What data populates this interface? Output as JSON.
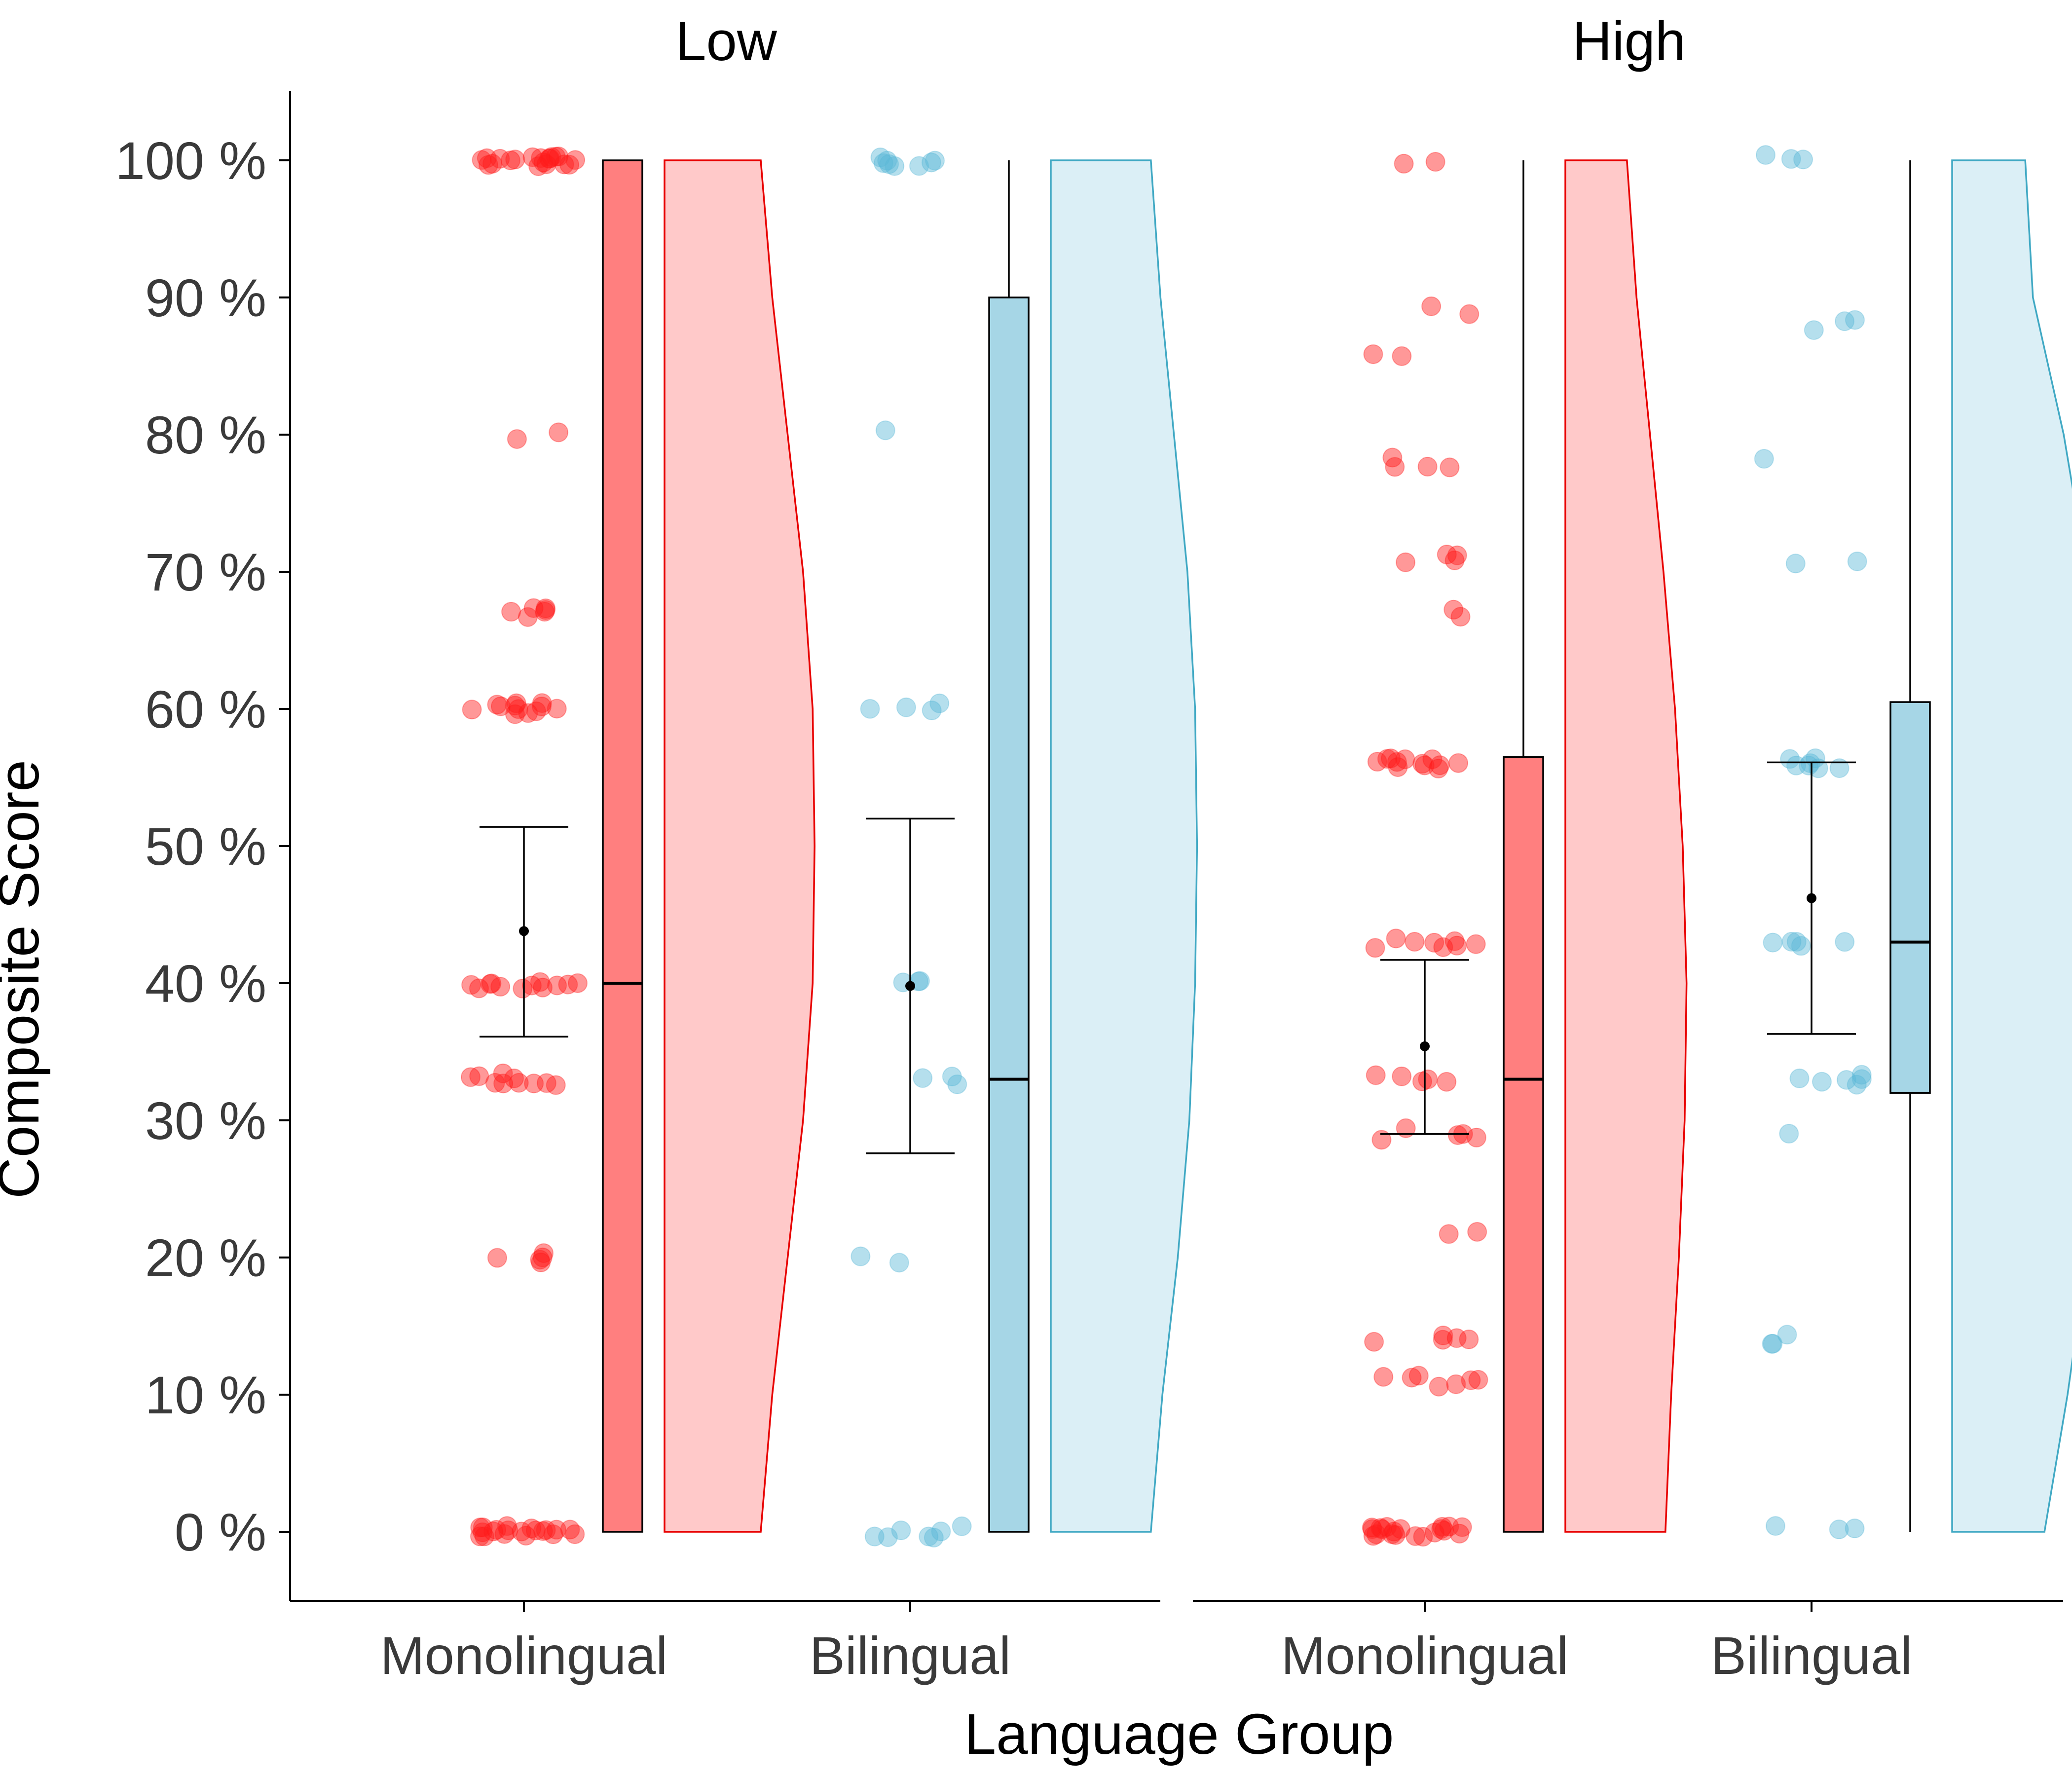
{
  "chart_data": {
    "type": "raincloud",
    "xlabel": "Language Group",
    "ylabel": "Composite Score",
    "ylim": [
      -5,
      105
    ],
    "yticks": [
      0,
      10,
      20,
      30,
      40,
      50,
      60,
      70,
      80,
      90,
      100
    ],
    "ytick_labels": [
      "0 %",
      "10 %",
      "20 %",
      "30 %",
      "40 %",
      "50 %",
      "60 %",
      "70 %",
      "80 %",
      "90 %",
      "100 %"
    ],
    "categories": [
      "Monolingual",
      "Bilingual"
    ],
    "grid": false,
    "colors": {
      "Monolingual": {
        "point": "#ff1a1a",
        "box": "#ff7f7f",
        "violin_fill": "#ffc9c9",
        "violin_line": "#e80000"
      },
      "Bilingual": {
        "point": "#5ab8d8",
        "box": "#a6d6e6",
        "violin_fill": "#dbeff6",
        "violin_line": "#41a9c4"
      }
    },
    "panels": [
      {
        "title": "Low",
        "groups": [
          {
            "name": "Monolingual",
            "mean": 43.8,
            "ci": [
              36.1,
              51.4
            ],
            "box": {
              "q1": 0,
              "median": 40,
              "q3": 100,
              "whisker_low": 0,
              "whisker_high": 100
            },
            "density": [
              [
                0,
                2.5
              ],
              [
                10,
                2.8
              ],
              [
                20,
                3.2
              ],
              [
                30,
                3.6
              ],
              [
                40,
                3.85
              ],
              [
                50,
                3.9
              ],
              [
                60,
                3.85
              ],
              [
                70,
                3.6
              ],
              [
                80,
                3.2
              ],
              [
                90,
                2.8
              ],
              [
                100,
                2.5
              ]
            ],
            "points": [
              {
                "score": 100,
                "count": 20
              },
              {
                "score": 80,
                "count": 2
              },
              {
                "score": 67,
                "count": 6
              },
              {
                "score": 60,
                "count": 12
              },
              {
                "score": 40,
                "count": 12
              },
              {
                "score": 33,
                "count": 10
              },
              {
                "score": 20,
                "count": 5
              },
              {
                "score": 0,
                "count": 20
              }
            ]
          },
          {
            "name": "Bilingual",
            "mean": 39.8,
            "ci": [
              27.6,
              52.0
            ],
            "box": {
              "q1": 0,
              "median": 33,
              "q3": 90,
              "whisker_low": 0,
              "whisker_high": 100
            },
            "density": [
              [
                0,
                2.6
              ],
              [
                10,
                2.9
              ],
              [
                20,
                3.3
              ],
              [
                30,
                3.6
              ],
              [
                40,
                3.75
              ],
              [
                50,
                3.8
              ],
              [
                60,
                3.75
              ],
              [
                70,
                3.55
              ],
              [
                80,
                3.2
              ],
              [
                90,
                2.85
              ],
              [
                100,
                2.6
              ]
            ],
            "points": [
              {
                "score": 100,
                "count": 8
              },
              {
                "score": 80,
                "count": 1
              },
              {
                "score": 60,
                "count": 4
              },
              {
                "score": 40,
                "count": 3
              },
              {
                "score": 33,
                "count": 3
              },
              {
                "score": 20,
                "count": 2
              },
              {
                "score": 0,
                "count": 7
              }
            ]
          }
        ]
      },
      {
        "title": "High",
        "groups": [
          {
            "name": "Monolingual",
            "mean": 35.4,
            "ci": [
              29.0,
              41.7
            ],
            "box": {
              "q1": 0,
              "median": 33,
              "q3": 56.5,
              "whisker_low": 0,
              "whisker_high": 100
            },
            "density": [
              [
                0,
                2.6
              ],
              [
                10,
                2.75
              ],
              [
                20,
                2.95
              ],
              [
                30,
                3.1
              ],
              [
                40,
                3.15
              ],
              [
                50,
                3.05
              ],
              [
                60,
                2.85
              ],
              [
                70,
                2.55
              ],
              [
                80,
                2.2
              ],
              [
                90,
                1.85
              ],
              [
                100,
                1.6
              ]
            ],
            "points": [
              {
                "score": 100,
                "count": 2
              },
              {
                "score": 89,
                "count": 2
              },
              {
                "score": 86,
                "count": 2
              },
              {
                "score": 78,
                "count": 4
              },
              {
                "score": 71,
                "count": 4
              },
              {
                "score": 67,
                "count": 2
              },
              {
                "score": 56,
                "count": 12
              },
              {
                "score": 43,
                "count": 8
              },
              {
                "score": 33,
                "count": 5
              },
              {
                "score": 29,
                "count": 5
              },
              {
                "score": 22,
                "count": 2
              },
              {
                "score": 14,
                "count": 5
              },
              {
                "score": 11,
                "count": 7
              },
              {
                "score": 0,
                "count": 20
              }
            ]
          },
          {
            "name": "Bilingual",
            "mean": 46.2,
            "ci": [
              36.3,
              56.1
            ],
            "box": {
              "q1": 32,
              "median": 43,
              "q3": 60.5,
              "whisker_low": 0,
              "whisker_high": 100
            },
            "density": [
              [
                0,
                2.4
              ],
              [
                10,
                3.0
              ],
              [
                20,
                3.5
              ],
              [
                30,
                3.95
              ],
              [
                40,
                4.2
              ],
              [
                50,
                4.2
              ],
              [
                60,
                3.95
              ],
              [
                70,
                3.5
              ],
              [
                80,
                2.9
              ],
              [
                90,
                2.1
              ],
              [
                100,
                1.9
              ]
            ],
            "points": [
              {
                "score": 100,
                "count": 3
              },
              {
                "score": 88,
                "count": 3
              },
              {
                "score": 78,
                "count": 1
              },
              {
                "score": 71,
                "count": 2
              },
              {
                "score": 56,
                "count": 7
              },
              {
                "score": 43,
                "count": 5
              },
              {
                "score": 33,
                "count": 6
              },
              {
                "score": 29,
                "count": 1
              },
              {
                "score": 14,
                "count": 3
              },
              {
                "score": 0,
                "count": 3
              }
            ]
          }
        ]
      }
    ]
  }
}
